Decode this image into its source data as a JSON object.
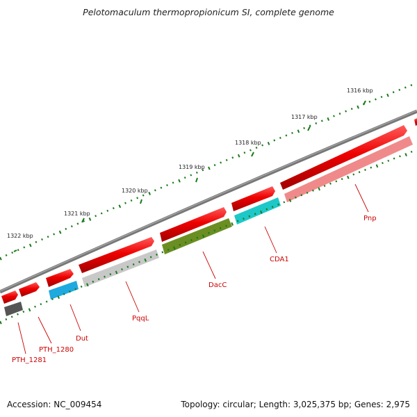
{
  "title": "Pelotomaculum thermopropionicum SI, complete genome",
  "footer": {
    "accession": "Accession: NC_009454",
    "topology": "Topology: circular; Length: 3,025,375 bp; Genes: 2,975"
  },
  "scale": {
    "unit": "kbp",
    "ticks": [
      "1322 kbp",
      "1321 kbp",
      "1320 kbp",
      "1319 kbp",
      "1318 kbp",
      "1317 kbp",
      "1316 kbp"
    ]
  },
  "genes": [
    {
      "name": "PTH_1281",
      "lane_color": "#555555"
    },
    {
      "name": "PTH_1280",
      "lane_color": ""
    },
    {
      "name": "Dut",
      "lane_color": "#1fa9e1"
    },
    {
      "name": "PqqL",
      "lane_color": "#c8c8c8"
    },
    {
      "name": "DacC",
      "lane_color": "#6b8e23"
    },
    {
      "name": "CDA1",
      "lane_color": "#1ec8c8"
    },
    {
      "name": "Pnp",
      "lane_color": "#f08a8a"
    }
  ],
  "colors": {
    "backbone": "#777777",
    "cds": "#ee0000",
    "ticks": "#1a7a1a",
    "label": "#cc0000"
  }
}
